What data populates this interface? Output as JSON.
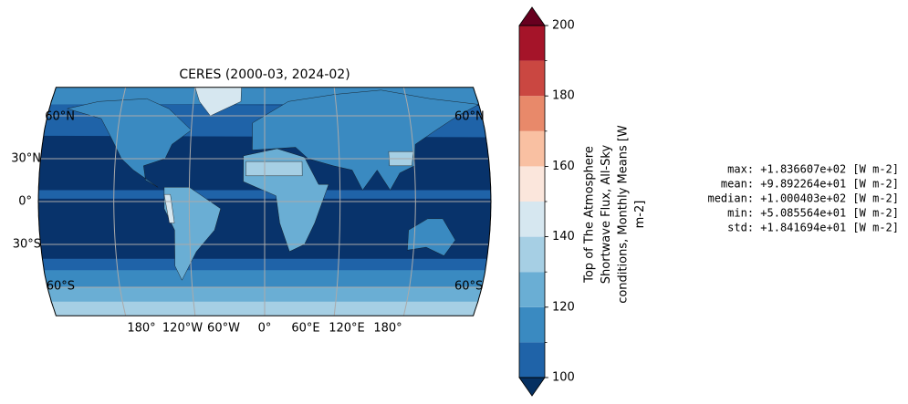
{
  "title": "CERES (2000-03, 2024-02)",
  "map": {
    "lat_labels_left": [
      "60°N",
      "30°N",
      "0°",
      "30°S",
      "60°S"
    ],
    "lat_labels_right": [
      "60°N",
      "60°S"
    ],
    "lon_labels": [
      "180°",
      "120°W",
      "60°W",
      "0°",
      "60°E",
      "120°E",
      "180°"
    ]
  },
  "colorbar": {
    "label_lines": [
      "Top of The Atmosphere",
      "Shortwave Flux, All-Sky",
      "conditions, Monthly Means [W",
      "m-2]"
    ],
    "levels": [
      100,
      110,
      120,
      130,
      140,
      150,
      160,
      170,
      180,
      190,
      200
    ],
    "colors": [
      "#1f63a8",
      "#3a8ac1",
      "#6aaed4",
      "#a6cfe4",
      "#d6e7f0",
      "#fbe6dc",
      "#f9c0a2",
      "#e8896a",
      "#ca4741",
      "#a51429"
    ],
    "under_color": "#053061",
    "over_color": "#67001f",
    "ylim": [
      100,
      200
    ],
    "yticks": [
      100,
      120,
      140,
      160,
      180,
      200
    ]
  },
  "stats": [
    "max: +1.836607e+02 [W m-2]",
    "mean: +9.892264e+01 [W m-2]",
    "median: +1.000403e+02 [W m-2]",
    "min: +5.085564e+01 [W m-2]",
    "std: +1.841694e+01 [W m-2]"
  ]
}
